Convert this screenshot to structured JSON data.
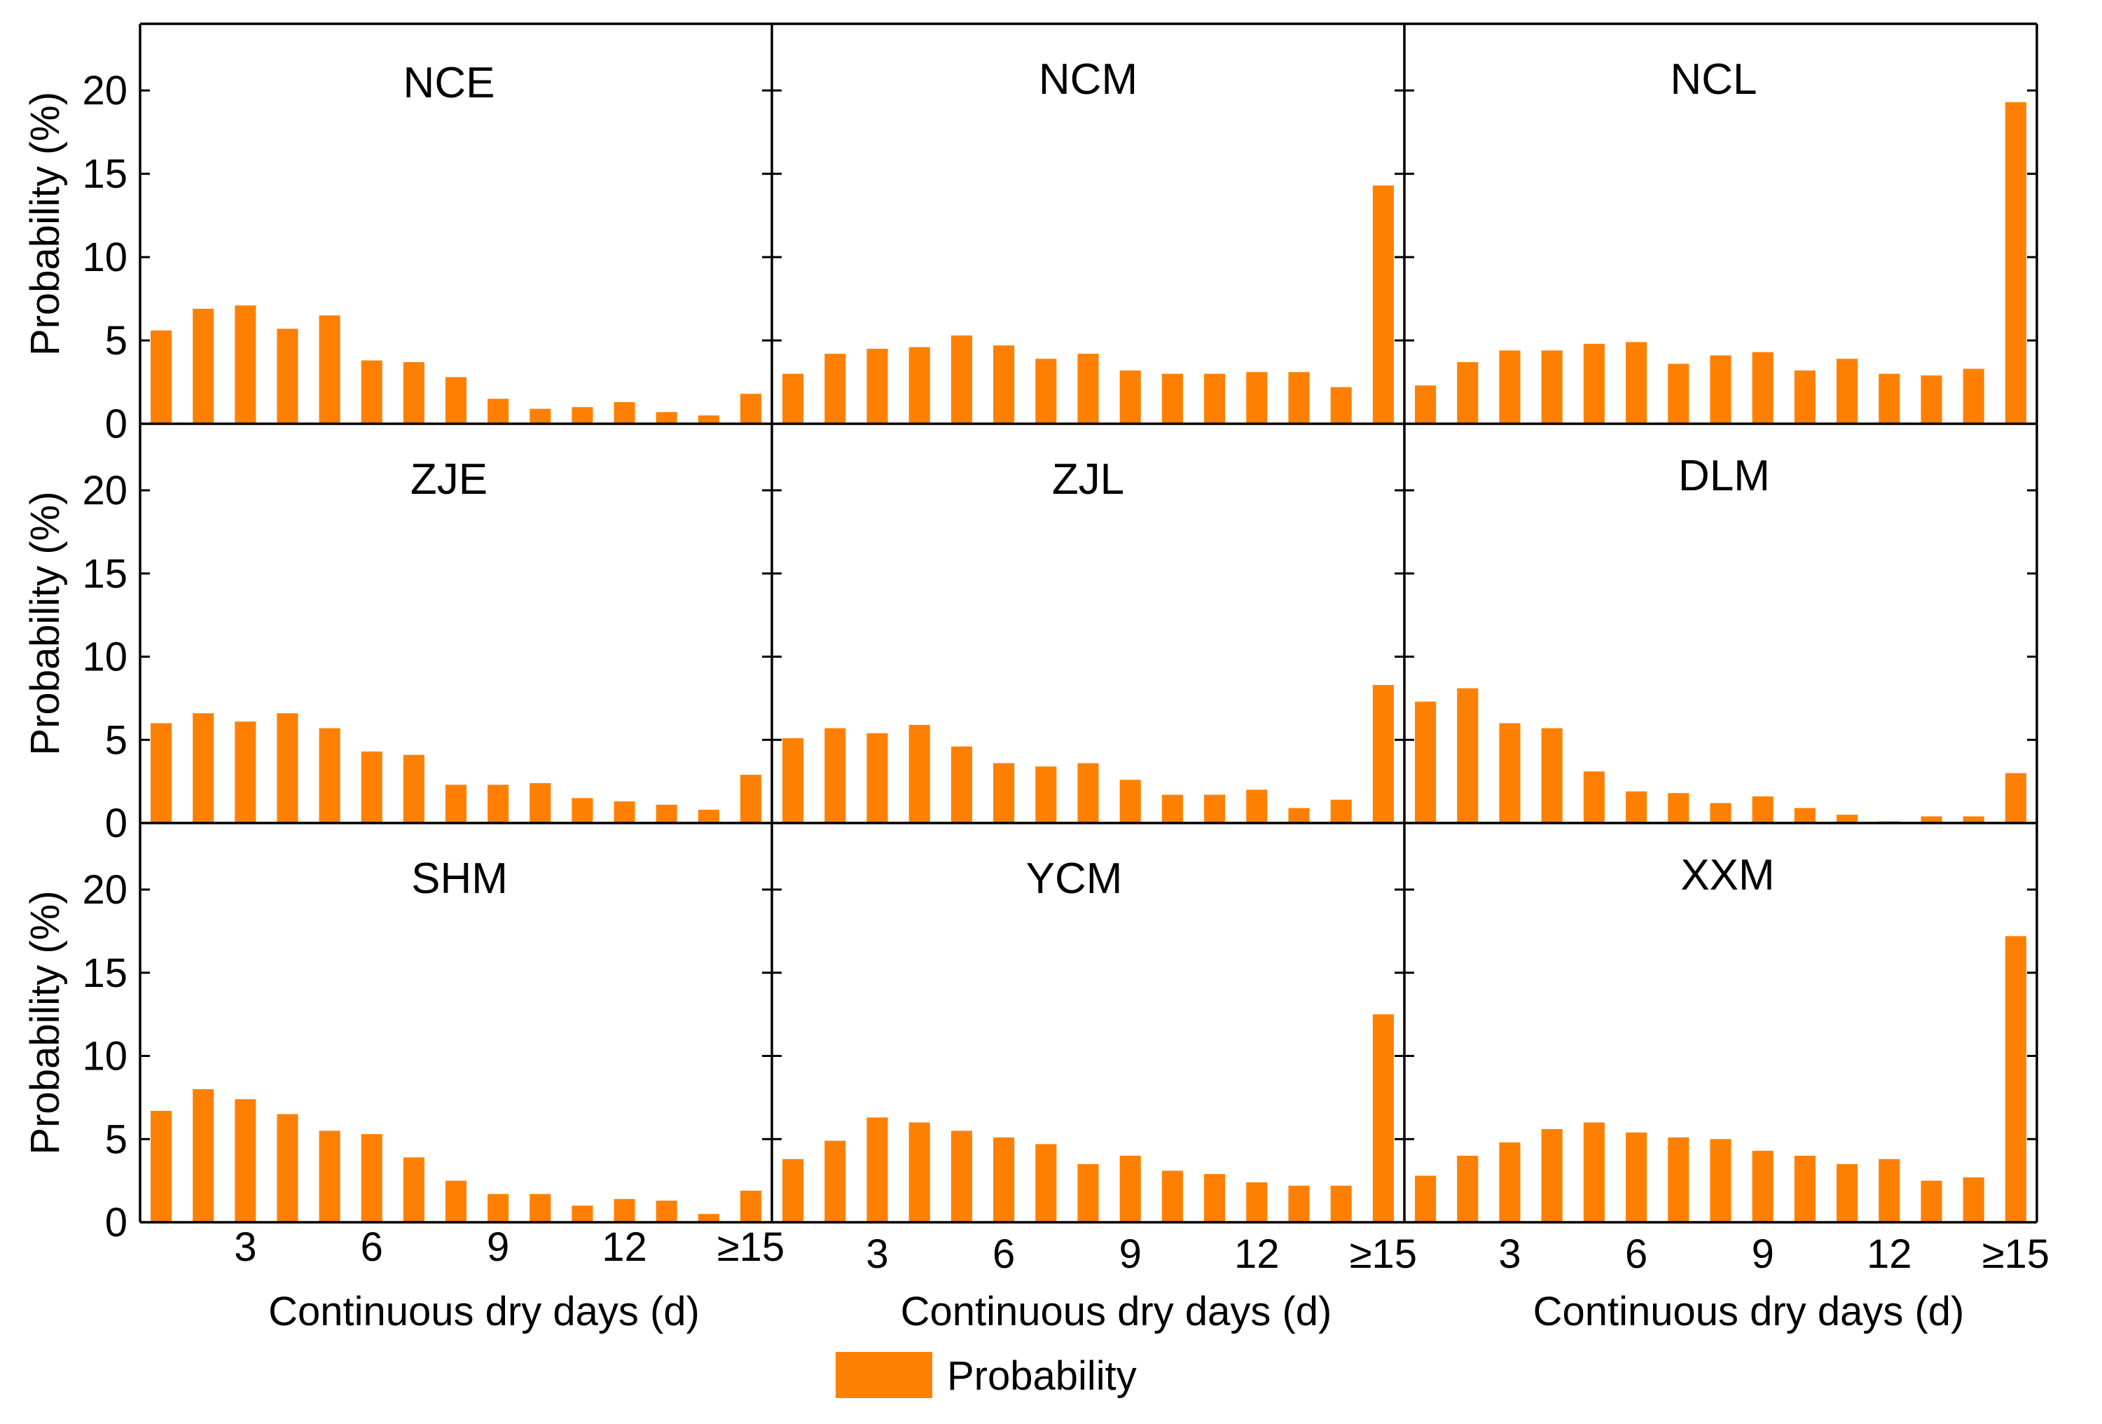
{
  "colors": {
    "bar": "#FF8000",
    "axis": "#000000",
    "background": "#FFFFFF"
  },
  "chart_data": {
    "type": "bar",
    "layout": "3x3 small multiples",
    "categories": [
      "1",
      "2",
      "3",
      "4",
      "5",
      "6",
      "7",
      "8",
      "9",
      "10",
      "11",
      "12",
      "13",
      "14",
      "≥15"
    ],
    "x_tick_labels": [
      "3",
      "6",
      "9",
      "12",
      "≥15"
    ],
    "xlabel": "Continuous dry days (d)",
    "ylabel": "Probability (%)",
    "ylim": [
      0,
      24
    ],
    "y_ticks": [
      0,
      5,
      10,
      15,
      20
    ],
    "legend": {
      "label": "Probability",
      "position": "bottom-center"
    },
    "series": [
      {
        "name": "NCE",
        "values": [
          5.6,
          6.9,
          7.1,
          5.7,
          6.5,
          3.8,
          3.7,
          2.8,
          1.5,
          0.9,
          1.0,
          1.3,
          0.7,
          0.5,
          1.8
        ]
      },
      {
        "name": "NCM",
        "values": [
          3.0,
          4.2,
          4.5,
          4.6,
          5.3,
          4.7,
          3.9,
          4.2,
          3.2,
          3.0,
          3.0,
          3.1,
          3.1,
          2.2,
          14.3
        ]
      },
      {
        "name": "NCL",
        "values": [
          2.3,
          3.7,
          4.4,
          4.4,
          4.8,
          4.9,
          3.6,
          4.1,
          4.3,
          3.2,
          3.9,
          3.0,
          2.9,
          3.3,
          19.3
        ]
      },
      {
        "name": "ZJE",
        "values": [
          6.0,
          6.6,
          6.1,
          6.6,
          5.7,
          4.3,
          4.1,
          2.3,
          2.3,
          2.4,
          1.5,
          1.3,
          1.1,
          0.8,
          2.9
        ]
      },
      {
        "name": "ZJL",
        "values": [
          5.1,
          5.7,
          5.4,
          5.9,
          4.6,
          3.6,
          3.4,
          3.6,
          2.6,
          1.7,
          1.7,
          2.0,
          0.9,
          1.4,
          8.3
        ]
      },
      {
        "name": "DLM",
        "values": [
          7.3,
          8.1,
          6.0,
          5.7,
          3.1,
          1.9,
          1.8,
          1.2,
          1.6,
          0.9,
          0.5,
          0.1,
          0.4,
          0.4,
          3.0
        ]
      },
      {
        "name": "SHM",
        "values": [
          6.7,
          8.0,
          7.4,
          6.5,
          5.5,
          5.3,
          3.9,
          2.5,
          1.7,
          1.7,
          1.0,
          1.4,
          1.3,
          0.5,
          1.9
        ]
      },
      {
        "name": "YCM",
        "values": [
          3.8,
          4.9,
          6.3,
          6.0,
          5.5,
          5.1,
          4.7,
          3.5,
          4.0,
          3.1,
          2.9,
          2.4,
          2.2,
          2.2,
          12.5
        ]
      },
      {
        "name": "XXM",
        "values": [
          2.8,
          4.0,
          4.8,
          5.6,
          6.0,
          5.4,
          5.1,
          5.0,
          4.3,
          4.0,
          3.5,
          3.8,
          2.5,
          2.7,
          17.2
        ]
      }
    ]
  }
}
